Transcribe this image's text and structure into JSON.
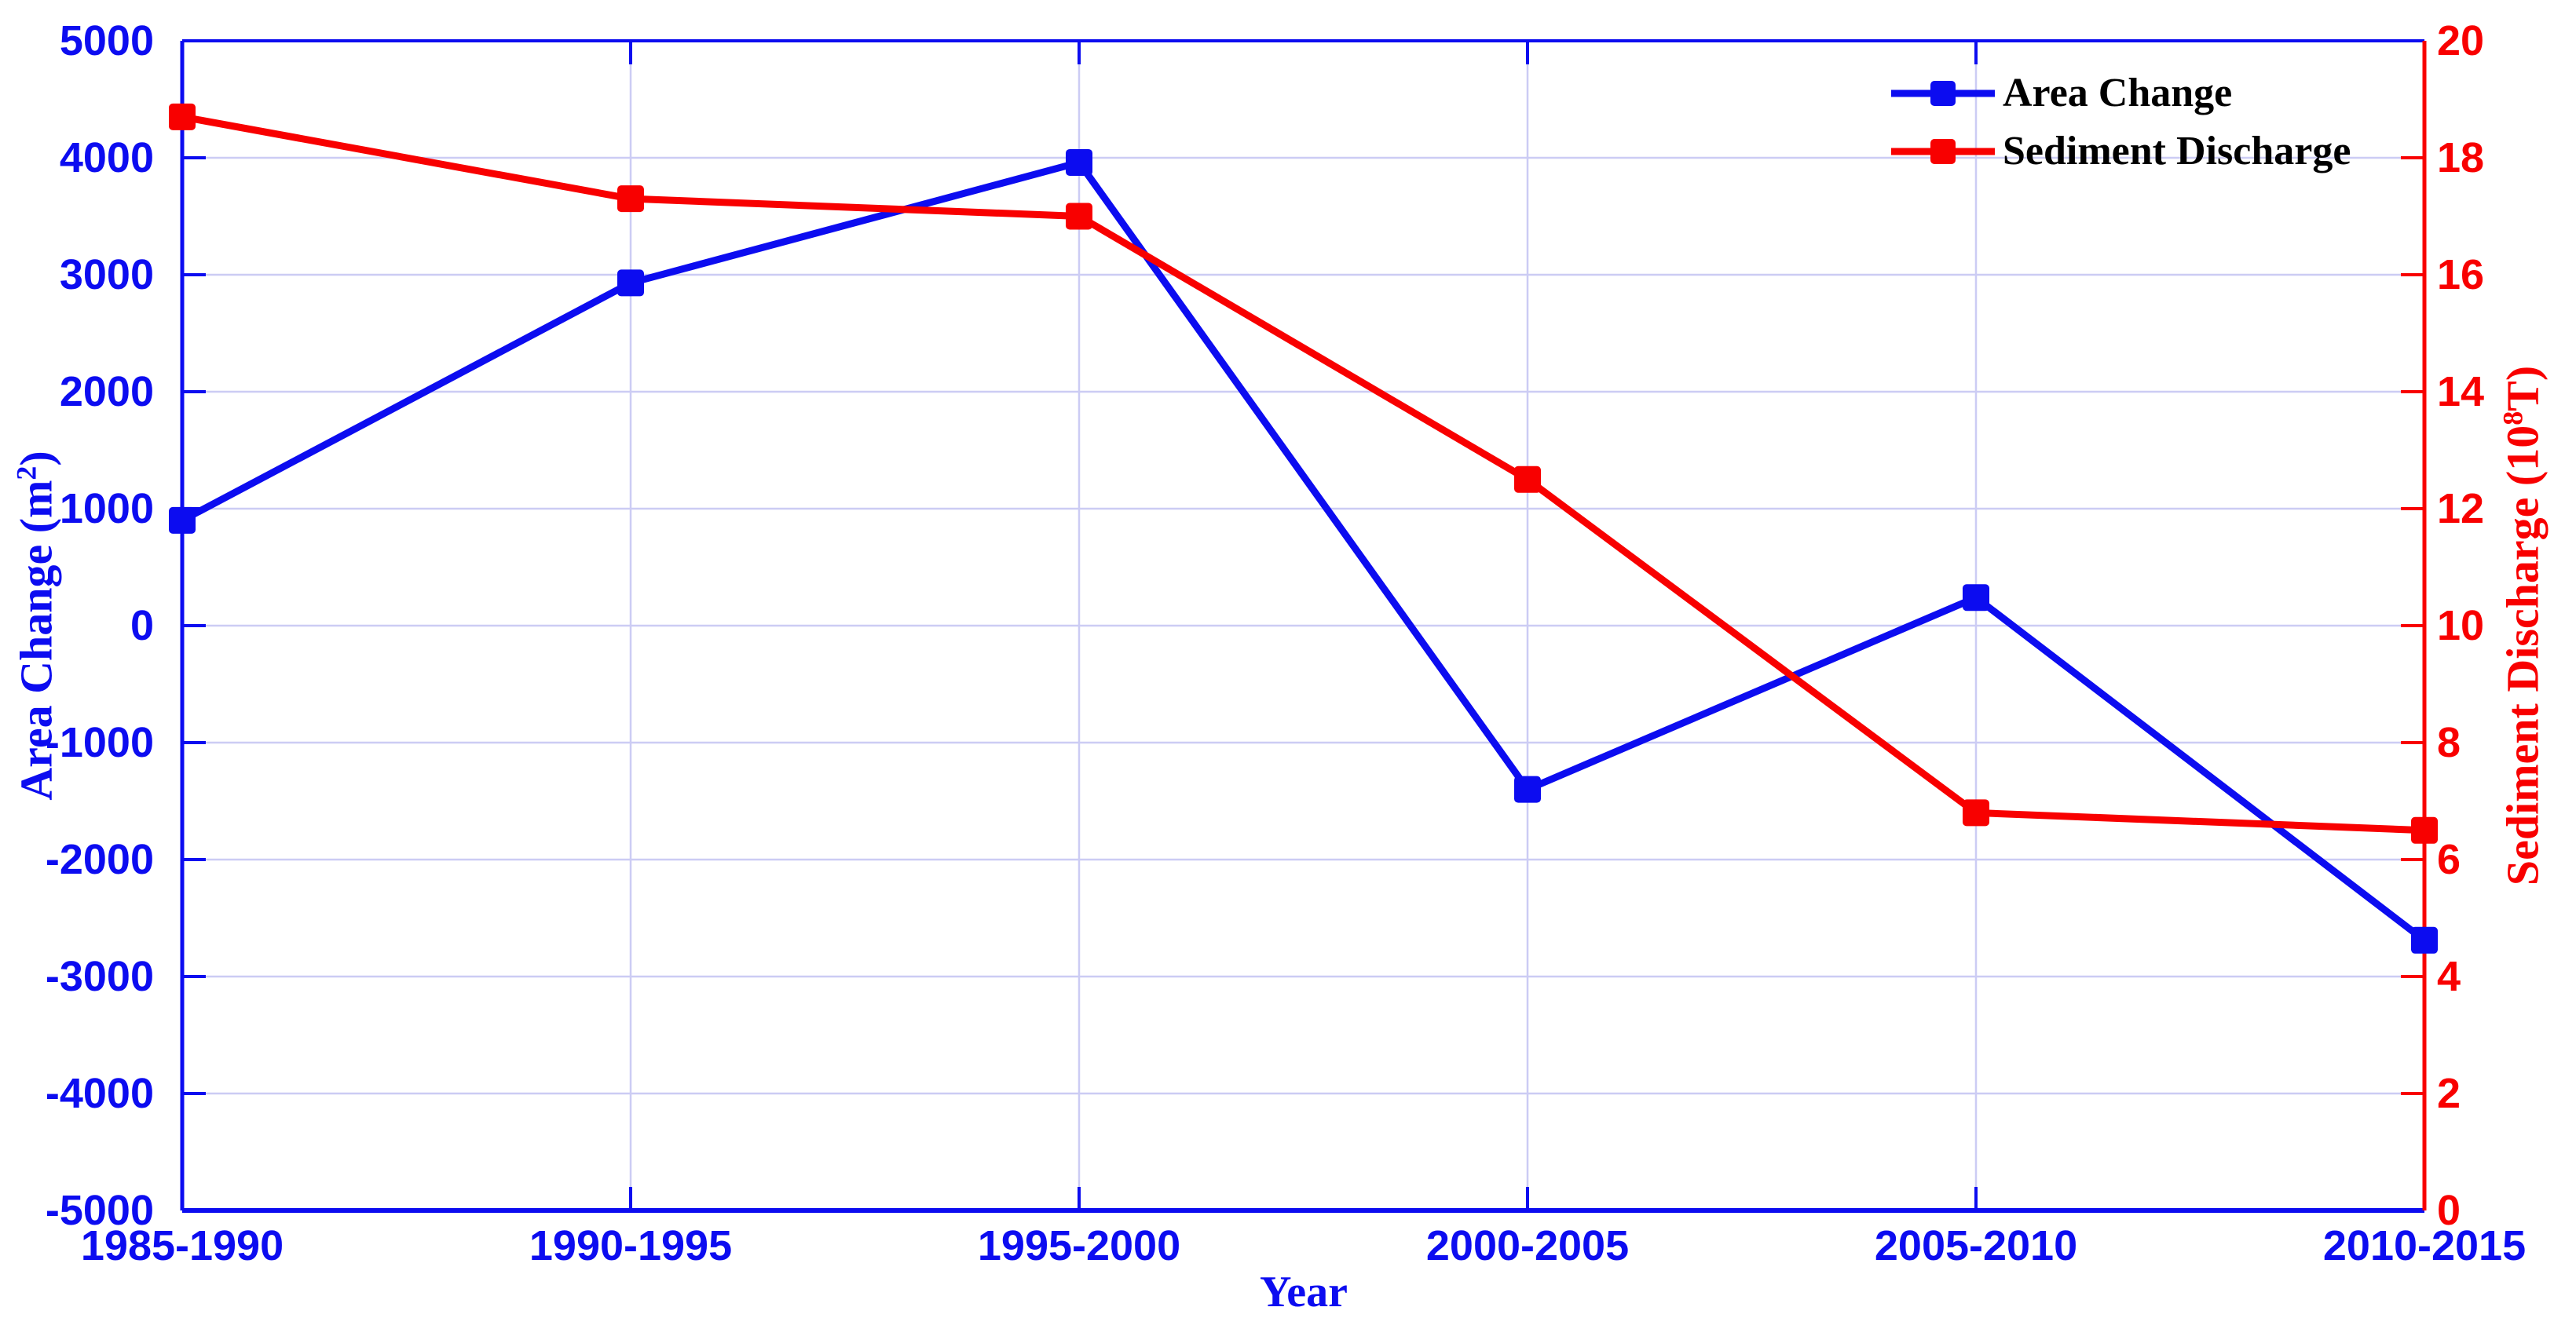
{
  "chart_data": {
    "type": "line",
    "title": "",
    "xlabel": "Year",
    "categories": [
      "1985-1990",
      "1990-1995",
      "1995-2000",
      "2000-2005",
      "2005-2010",
      "2010-2015"
    ],
    "series": [
      {
        "name": "Area Change",
        "axis": "left",
        "color": "#0c0cf0",
        "marker": "square",
        "values": [
          900,
          2930,
          3960,
          -1400,
          240,
          -2690
        ]
      },
      {
        "name": "Sediment Discharge",
        "axis": "right",
        "color": "#f80000",
        "marker": "square",
        "values": [
          18.7,
          17.3,
          17.0,
          12.5,
          6.8,
          6.5
        ]
      }
    ],
    "y_left": {
      "title": "Area Change (m2)",
      "title_main": "Area Change (m",
      "title_sup": "2",
      "title_close": ")",
      "min": -5000,
      "max": 5000,
      "step": 1000,
      "ticks": [
        "5000",
        "4000",
        "3000",
        "2000",
        "1000",
        "0",
        "-1000",
        "-2000",
        "-3000",
        "-4000",
        "-5000"
      ],
      "color": "#0c0cf0"
    },
    "y_right": {
      "title": "Sediment Discharge (108T)",
      "title_main": "Sediment Discharge (10",
      "title_sup": "8",
      "title_close": "T)",
      "min": 0,
      "max": 20,
      "step": 2,
      "ticks": [
        "20",
        "18",
        "16",
        "14",
        "12",
        "10",
        "8",
        "6",
        "4",
        "2",
        "0"
      ],
      "color": "#f80000"
    },
    "x_axis_text_color": "#0c0cf0",
    "grid": true,
    "grid_color": "#ccccf4",
    "legend_position": "top-right-inside",
    "legend_text_color": "#000000"
  }
}
